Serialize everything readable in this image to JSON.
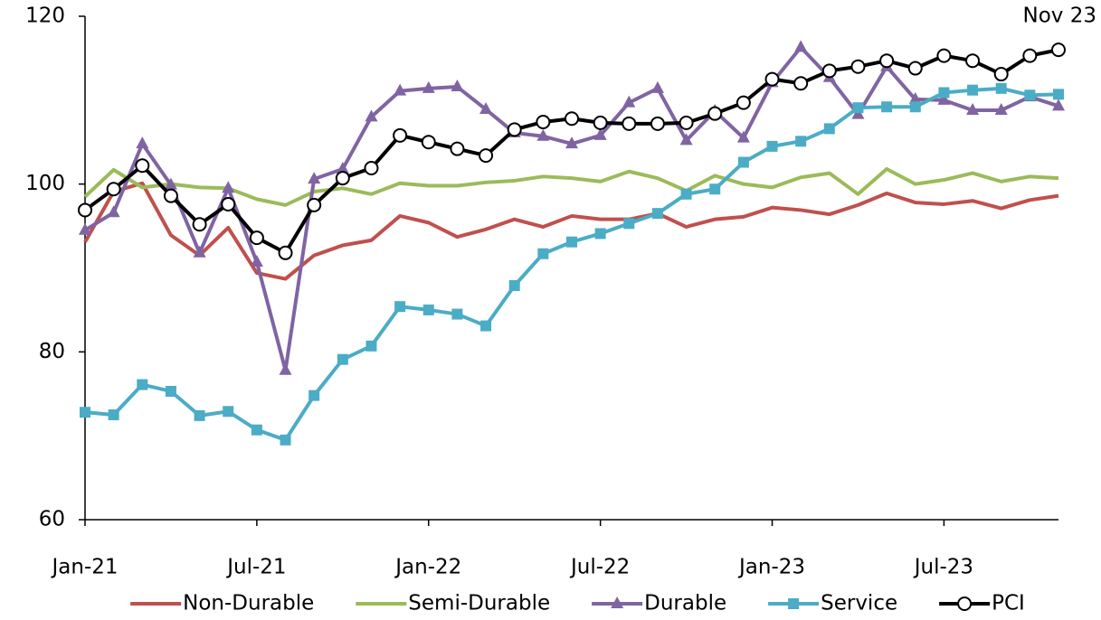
{
  "chart_data": {
    "type": "line",
    "annotation": "Nov 23",
    "categories": [
      "Jan-21",
      null,
      null,
      null,
      null,
      null,
      "Jul-21",
      null,
      null,
      null,
      null,
      null,
      "Jan-22",
      null,
      null,
      null,
      null,
      null,
      "Jul-22",
      null,
      null,
      null,
      null,
      null,
      "Jan-23",
      null,
      null,
      null,
      null,
      null,
      "Jul-23",
      null,
      null,
      null,
      null
    ],
    "ylim": [
      60,
      120
    ],
    "yticks": [
      60,
      80,
      100,
      120
    ],
    "grid": false,
    "legend": "bottom",
    "series": [
      {
        "name": "Non-Durable",
        "color": "#c0504d",
        "marker": "none",
        "values": [
          93.1,
          99.1,
          100.1,
          93.9,
          91.5,
          94.8,
          89.4,
          88.7,
          91.5,
          92.7,
          93.3,
          96.2,
          95.4,
          93.7,
          94.6,
          95.8,
          94.9,
          96.2,
          95.8,
          95.8,
          96.5,
          94.9,
          95.8,
          96.1,
          97.2,
          96.9,
          96.4,
          97.5,
          98.9,
          97.8,
          97.6,
          98.0,
          97.1,
          98.1,
          98.6
        ]
      },
      {
        "name": "Semi-Durable",
        "color": "#9bbb59",
        "marker": "none",
        "values": [
          98.5,
          101.7,
          99.6,
          100.0,
          99.6,
          99.5,
          98.2,
          97.5,
          99.1,
          99.5,
          98.8,
          100.1,
          99.8,
          99.8,
          100.2,
          100.4,
          100.9,
          100.7,
          100.3,
          101.5,
          100.7,
          99.2,
          101.0,
          100.0,
          99.6,
          100.8,
          101.3,
          98.8,
          101.8,
          100.0,
          100.5,
          101.3,
          100.3,
          100.9,
          100.7
        ]
      },
      {
        "name": "Durable",
        "color": "#8064a2",
        "marker": "triangle",
        "values": [
          94.5,
          96.6,
          104.8,
          99.9,
          91.8,
          99.5,
          90.7,
          77.8,
          100.6,
          101.8,
          108.0,
          111.1,
          111.4,
          111.6,
          108.9,
          106.1,
          105.7,
          104.8,
          105.8,
          109.7,
          111.4,
          105.2,
          108.7,
          105.5,
          112.1,
          116.3,
          112.7,
          108.3,
          114.0,
          110.1,
          110.0,
          108.8,
          108.8,
          110.4,
          109.3
        ]
      },
      {
        "name": "Service",
        "color": "#4bacc6",
        "marker": "square",
        "values": [
          72.8,
          72.5,
          76.1,
          75.3,
          72.4,
          72.9,
          70.7,
          69.5,
          74.8,
          79.1,
          80.7,
          85.4,
          85.0,
          84.5,
          83.1,
          87.9,
          91.7,
          93.1,
          94.1,
          95.3,
          96.5,
          98.8,
          99.4,
          102.6,
          104.5,
          105.1,
          106.6,
          109.1,
          109.2,
          109.2,
          110.9,
          111.2,
          111.4,
          110.6,
          110.7
        ]
      },
      {
        "name": "PCI",
        "color": "#000000",
        "marker": "circle",
        "values": [
          96.9,
          99.4,
          102.2,
          98.6,
          95.2,
          97.6,
          93.6,
          91.8,
          97.5,
          100.7,
          101.9,
          105.8,
          105.0,
          104.2,
          103.4,
          106.5,
          107.4,
          107.8,
          107.3,
          107.2,
          107.2,
          107.3,
          108.4,
          109.7,
          112.5,
          112.0,
          113.5,
          114.0,
          114.7,
          113.8,
          115.3,
          114.7,
          113.1,
          115.3,
          116.0
        ]
      }
    ]
  }
}
